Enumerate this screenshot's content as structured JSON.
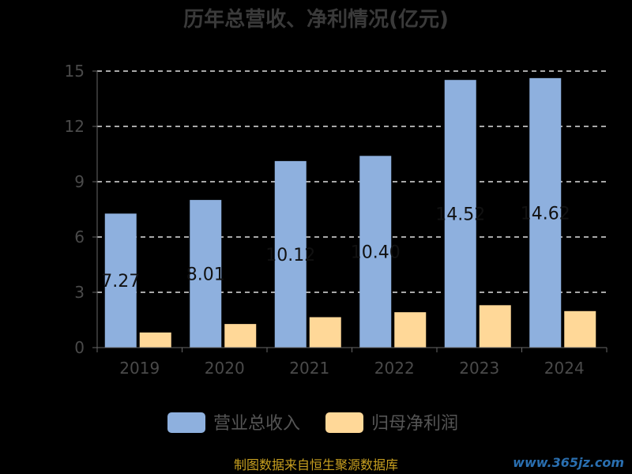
{
  "chart_data": {
    "type": "bar",
    "title": "历年总营收、净利情况(亿元)",
    "categories": [
      "2019",
      "2020",
      "2021",
      "2022",
      "2023",
      "2024"
    ],
    "series": [
      {
        "name": "营业总收入",
        "values": [
          7.27,
          8.01,
          10.12,
          10.4,
          14.52,
          14.62
        ],
        "labels": [
          "7.27",
          "8.01",
          "10.12",
          "10.40",
          "14.52",
          "14.62"
        ],
        "color": "#8eb0de"
      },
      {
        "name": "归母净利润",
        "values": [
          0.82,
          1.28,
          1.65,
          1.92,
          2.3,
          1.98
        ],
        "color": "#ffd898"
      }
    ],
    "ylim": [
      0,
      15
    ],
    "yticks": [
      "0",
      "3",
      "6",
      "9",
      "12",
      "15"
    ],
    "grid": true,
    "legend": "bottom"
  },
  "source_note": "制图数据来自恒生聚源数据库",
  "watermark": "www.365jz.com"
}
